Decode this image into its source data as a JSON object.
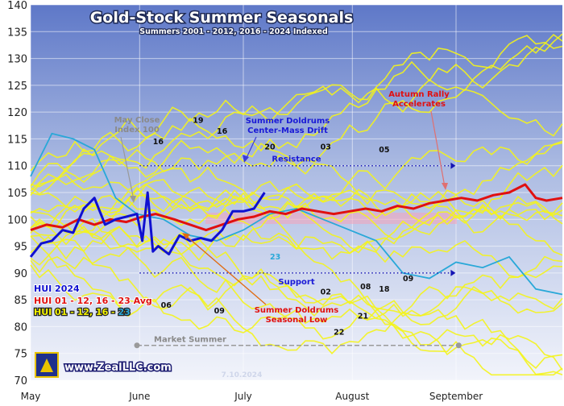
{
  "chart_data": {
    "type": "line",
    "title": "Gold-Stock Summer Seasonals",
    "subtitle": "Summers 2001 - 2012, 2016 - 2024 Indexed",
    "ylim": [
      70,
      140
    ],
    "y_ticks": [
      "70",
      "75",
      "80",
      "85",
      "90",
      "95",
      "100",
      "105",
      "110",
      "115",
      "120",
      "125",
      "130",
      "135",
      "140"
    ],
    "x_tick_labels": [
      "May",
      "June",
      "July",
      "August",
      "September"
    ],
    "grid": true,
    "legend": [
      {
        "label": "HUI 2024",
        "color": "#1010d0"
      },
      {
        "label": "HUI 01 - 12, 16 - 23 Avg",
        "color": "#e01010"
      },
      {
        "label": "HUI 01 - 12, 16 - ",
        "color": "#f2f200",
        "suffix": "23",
        "suffix_color": "#29a8d8"
      }
    ],
    "annotations": {
      "may_close": [
        "May Close",
        "Index 100"
      ],
      "doldrums_drift": [
        "Summer Doldrums",
        "Center-Mass Drift"
      ],
      "autumn_rally": [
        "Autumn Rally",
        "Accelerates"
      ],
      "resistance": "Resistance",
      "support": "Support",
      "seasonal_low": [
        "Summer Doldrums",
        "Seasonal Low"
      ],
      "market_summer": "Market Summer"
    },
    "resistance_level": 110,
    "support_level": 90,
    "market_summer_level": 76.5,
    "year_labels": [
      {
        "text": "19",
        "x": 0.315,
        "y": 118
      },
      {
        "text": "16",
        "x": 0.24,
        "y": 114
      },
      {
        "text": "16",
        "x": 0.36,
        "y": 116
      },
      {
        "text": "20",
        "x": 0.45,
        "y": 113
      },
      {
        "text": "03",
        "x": 0.555,
        "y": 113
      },
      {
        "text": "05",
        "x": 0.665,
        "y": 112.5
      },
      {
        "text": "23",
        "x": 0.46,
        "y": 92.5
      },
      {
        "text": "06",
        "x": 0.255,
        "y": 83.5
      },
      {
        "text": "09",
        "x": 0.355,
        "y": 82.5
      },
      {
        "text": "02",
        "x": 0.555,
        "y": 86
      },
      {
        "text": "08",
        "x": 0.63,
        "y": 87
      },
      {
        "text": "18",
        "x": 0.665,
        "y": 86.5
      },
      {
        "text": "09",
        "x": 0.71,
        "y": 88.5
      },
      {
        "text": "21",
        "x": 0.625,
        "y": 81.5
      },
      {
        "text": "22",
        "x": 0.58,
        "y": 78.5
      }
    ],
    "series": [
      {
        "name": "HUI 01 - 12, 16 - 23 Avg",
        "color": "#e01010",
        "x": [
          0,
          0.03,
          0.06,
          0.09,
          0.12,
          0.15,
          0.18,
          0.21,
          0.235,
          0.27,
          0.3,
          0.33,
          0.36,
          0.39,
          0.42,
          0.45,
          0.48,
          0.51,
          0.54,
          0.57,
          0.6,
          0.63,
          0.66,
          0.69,
          0.72,
          0.75,
          0.78,
          0.81,
          0.84,
          0.87,
          0.9,
          0.93,
          0.95,
          0.97,
          1.0
        ],
        "y": [
          98,
          99,
          98.5,
          100,
          99,
          100,
          99.5,
          100.5,
          101,
          100,
          99,
          98,
          99,
          100,
          100.5,
          101.5,
          101,
          102,
          101.5,
          101,
          101.5,
          102,
          101.5,
          102.5,
          102,
          103,
          103.5,
          104,
          103.5,
          104.5,
          105,
          106.5,
          104,
          103.5,
          104
        ]
      },
      {
        "name": "HUI 2024",
        "color": "#1010d0",
        "x": [
          0,
          0.02,
          0.04,
          0.06,
          0.08,
          0.1,
          0.12,
          0.14,
          0.16,
          0.18,
          0.2,
          0.21,
          0.22,
          0.23,
          0.24,
          0.26,
          0.28,
          0.3,
          0.32,
          0.34,
          0.36,
          0.38,
          0.4,
          0.42,
          0.44
        ],
        "y": [
          93,
          95.5,
          96,
          98,
          97.5,
          102,
          104,
          99,
          100,
          100.5,
          101,
          96,
          105,
          94,
          95,
          93.5,
          97,
          96,
          96.5,
          96,
          98,
          101.5,
          101.5,
          102,
          105
        ]
      }
    ]
  },
  "footer": {
    "site": "www.ZealLLC.com",
    "date": "7.10.2024"
  }
}
